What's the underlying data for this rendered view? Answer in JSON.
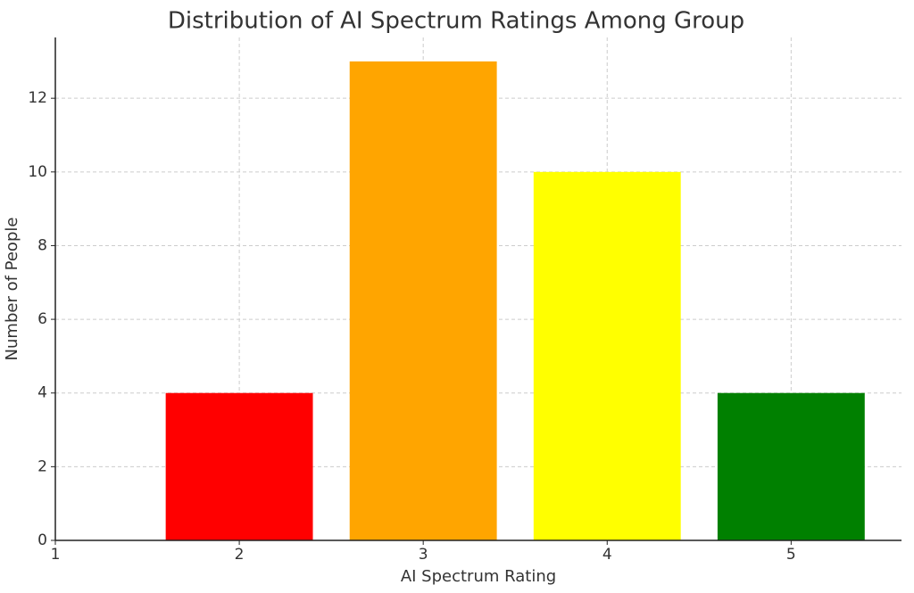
{
  "chart_data": {
    "type": "bar",
    "title": "Distribution of AI Spectrum Ratings Among Group",
    "x_label": "AI Spectrum Rating",
    "y_label": "Number of People",
    "x": [
      2,
      3,
      4,
      5
    ],
    "values": [
      4,
      13,
      10,
      4
    ],
    "colors": [
      "#ff0000",
      "#ffa500",
      "#ffff00",
      "#008000"
    ],
    "xlim": [
      1,
      5.6
    ],
    "xticks": [
      1,
      2,
      3,
      4,
      5
    ],
    "ylim": [
      0,
      13.65
    ],
    "yticks": [
      0,
      2,
      4,
      6,
      8,
      10,
      12
    ],
    "grid": true
  }
}
